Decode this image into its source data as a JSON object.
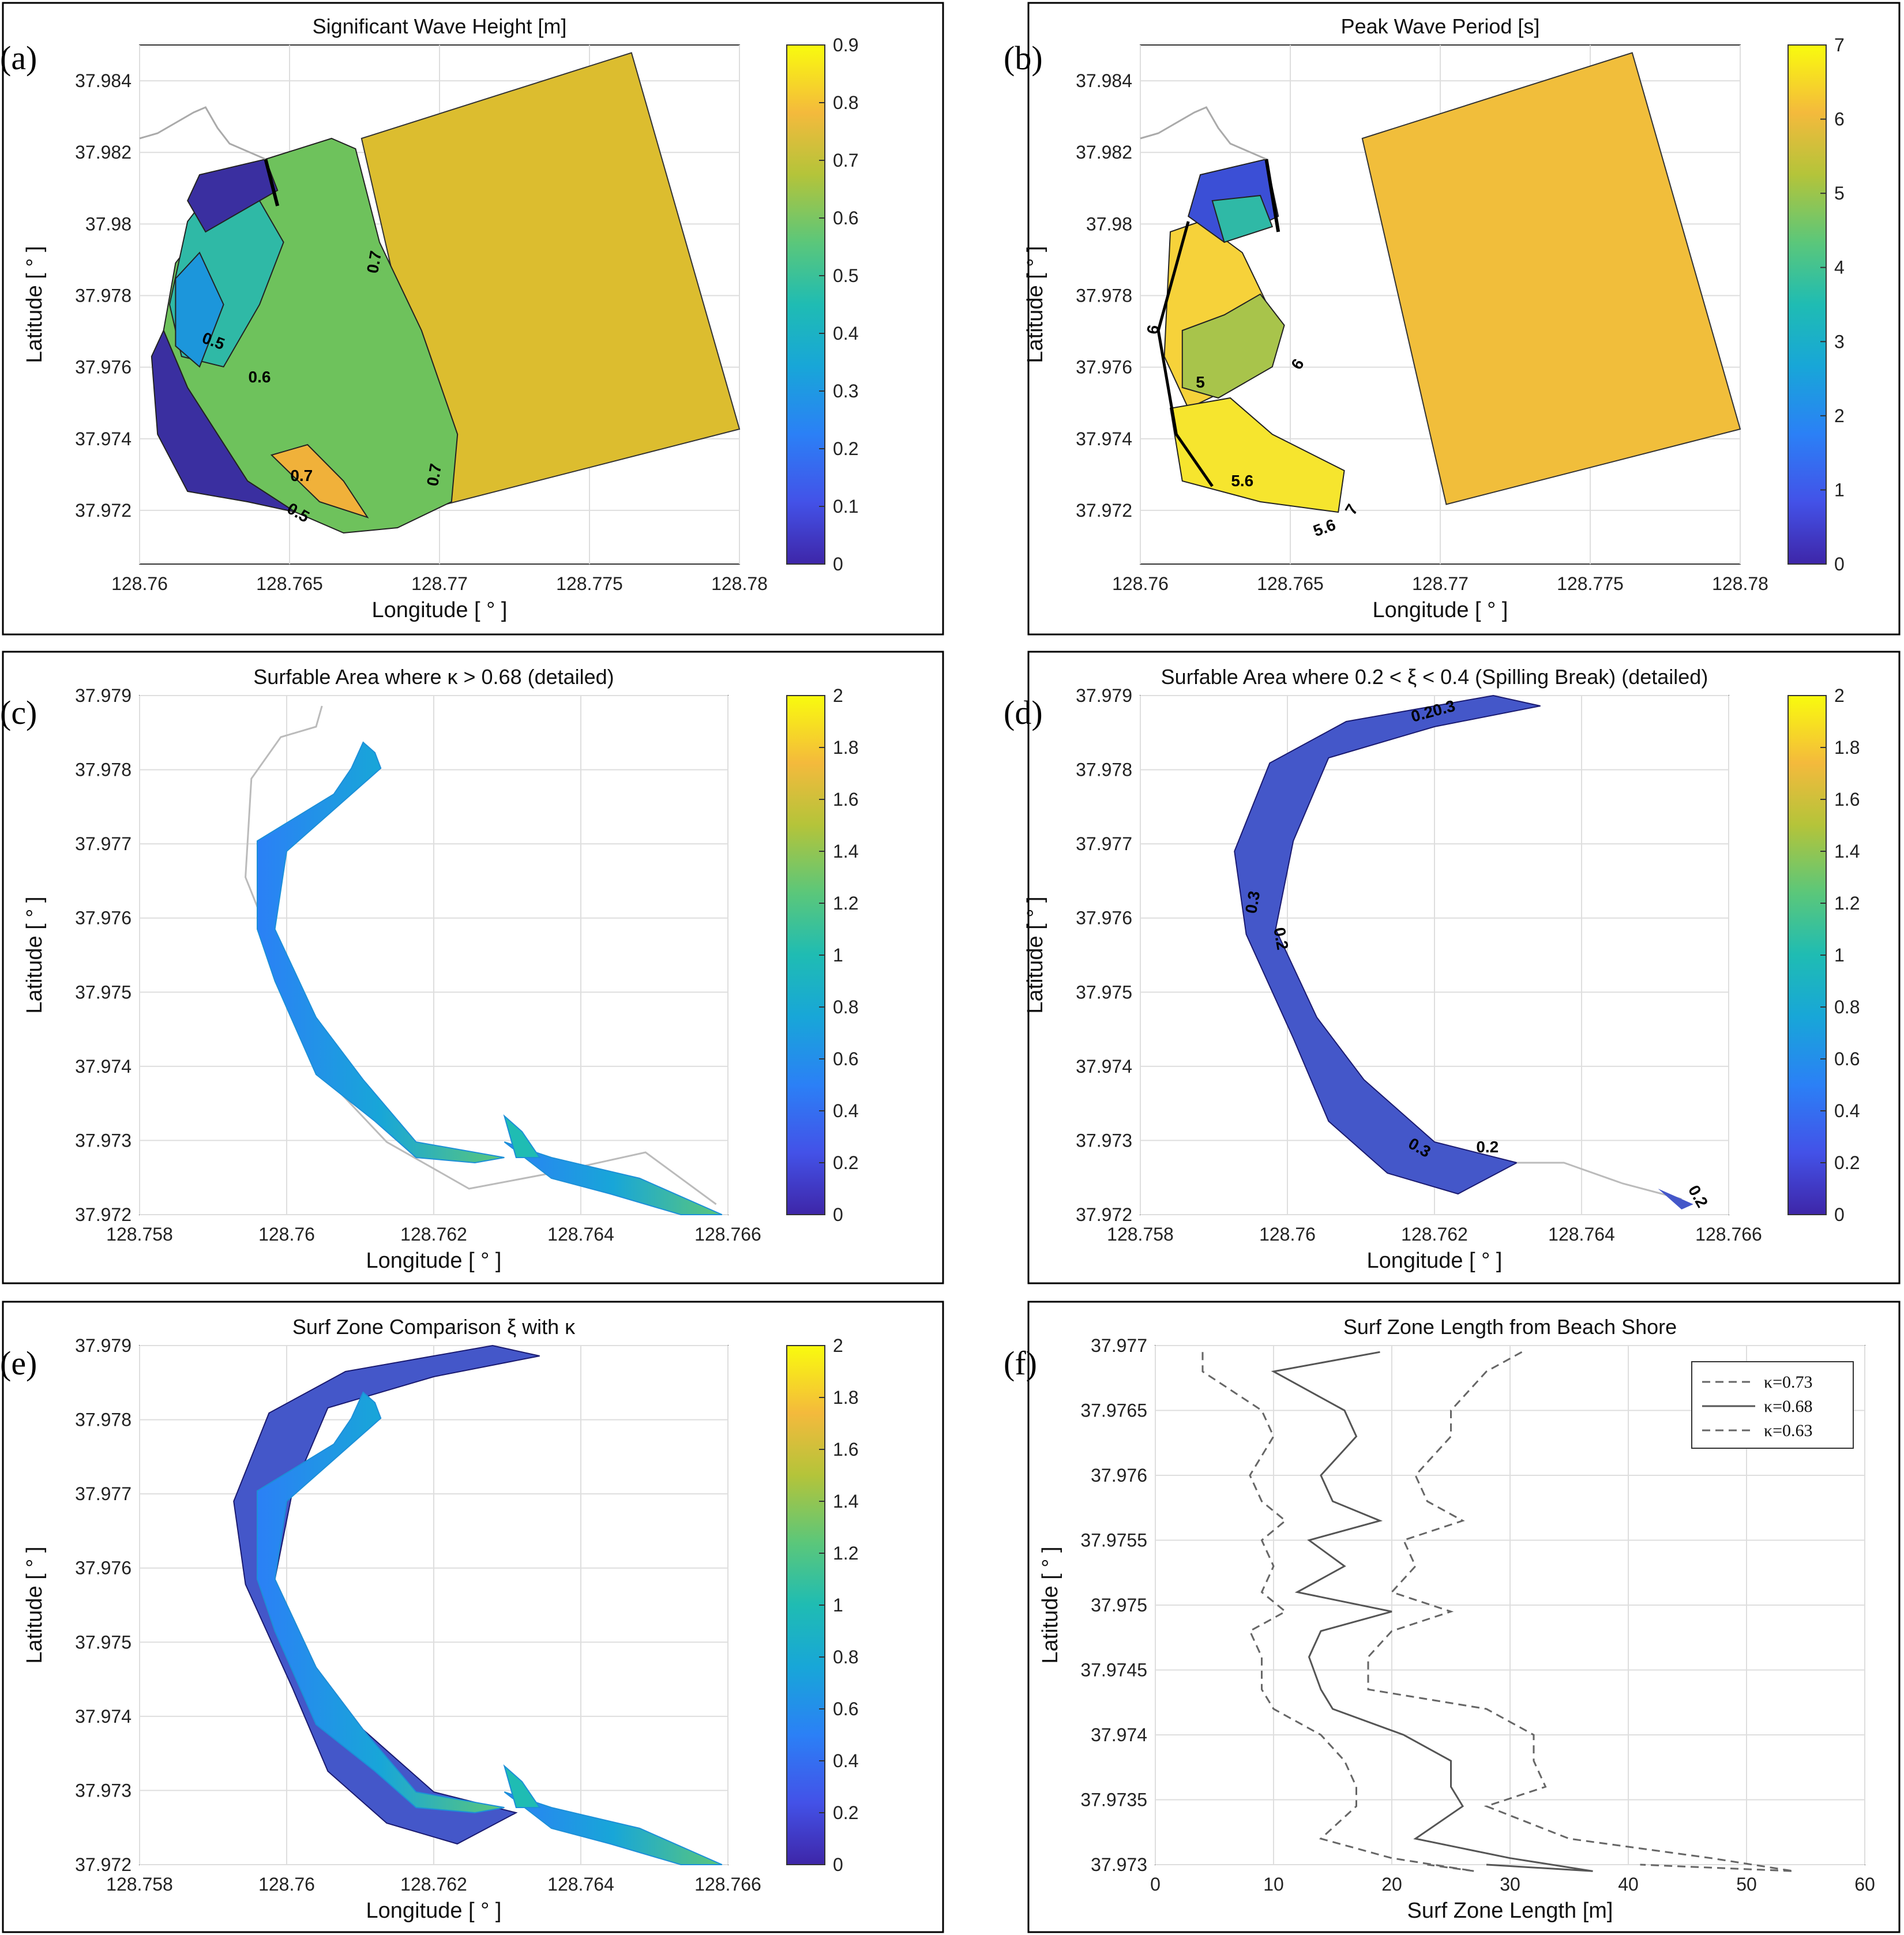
{
  "chart_data": [
    {
      "panel": "(a)",
      "type": "heatmap",
      "title": "Significant Wave Height [m]",
      "xlabel": "Longitude [ ° ]",
      "ylabel": "Latitude [ ° ]",
      "xlim": [
        128.758,
        128.78
      ],
      "ylim": [
        37.9705,
        37.985
      ],
      "xticks": [
        "128.76",
        "128.765",
        "128.77",
        "128.775",
        "128.78"
      ],
      "yticks": [
        "37.972",
        "37.974",
        "37.976",
        "37.978",
        "37.98",
        "37.982",
        "37.984"
      ],
      "colorbar": {
        "min": 0,
        "max": 0.9,
        "ticks": [
          "0",
          "0.1",
          "0.2",
          "0.3",
          "0.4",
          "0.5",
          "0.6",
          "0.7",
          "0.8",
          "0.9"
        ]
      },
      "contour_labels": [
        "0.7",
        "0.5",
        "0.6",
        "0.7",
        "0.7",
        "0.5"
      ]
    },
    {
      "panel": "(b)",
      "type": "heatmap",
      "title": "Peak Wave Period [s]",
      "xlabel": "Longitude [ ° ]",
      "ylabel": "Latitude [ ° ]",
      "xlim": [
        128.758,
        128.78
      ],
      "ylim": [
        37.9705,
        37.985
      ],
      "xticks": [
        "128.76",
        "128.765",
        "128.77",
        "128.775",
        "128.78"
      ],
      "yticks": [
        "37.972",
        "37.974",
        "37.976",
        "37.978",
        "37.98",
        "37.982",
        "37.984"
      ],
      "colorbar": {
        "min": 0,
        "max": 7,
        "ticks": [
          "0",
          "1",
          "2",
          "3",
          "4",
          "5",
          "6",
          "7"
        ]
      },
      "contour_labels": [
        "5",
        "6",
        "6",
        "5.6",
        "5.6",
        "7"
      ]
    },
    {
      "panel": "(c)",
      "type": "heatmap",
      "title": "Surfable Area where κ > 0.68 (detailed)",
      "xlabel": "Longitude [ ° ]",
      "ylabel": "Latitude [ ° ]",
      "xlim": [
        128.758,
        128.766
      ],
      "ylim": [
        37.972,
        37.979
      ],
      "xticks": [
        "128.758",
        "128.76",
        "128.762",
        "128.764",
        "128.766"
      ],
      "yticks": [
        "37.972",
        "37.973",
        "37.974",
        "37.975",
        "37.976",
        "37.977",
        "37.978",
        "37.979"
      ],
      "colorbar": {
        "min": 0,
        "max": 2,
        "ticks": [
          "0",
          "0.2",
          "0.4",
          "0.6",
          "0.8",
          "1",
          "1.2",
          "1.4",
          "1.6",
          "1.8",
          "2"
        ]
      }
    },
    {
      "panel": "(d)",
      "type": "heatmap",
      "title": "Surfable Area where 0.2 < ξ < 0.4 (Spilling Break) (detailed)",
      "xlabel": "Longitude [ ° ]",
      "ylabel": "Latitude [ ° ]",
      "xlim": [
        128.758,
        128.766
      ],
      "ylim": [
        37.972,
        37.979
      ],
      "xticks": [
        "128.758",
        "128.76",
        "128.762",
        "128.764",
        "128.766"
      ],
      "yticks": [
        "37.972",
        "37.973",
        "37.974",
        "37.975",
        "37.976",
        "37.977",
        "37.978",
        "37.979"
      ],
      "colorbar": {
        "min": 0,
        "max": 2,
        "ticks": [
          "0",
          "0.2",
          "0.4",
          "0.6",
          "0.8",
          "1",
          "1.2",
          "1.4",
          "1.6",
          "1.8",
          "2"
        ]
      },
      "contour_labels": [
        "0.20.3",
        "0.3",
        "0.2",
        "0.3",
        "0.2",
        "0.2"
      ]
    },
    {
      "panel": "(e)",
      "type": "heatmap",
      "title": "Surf Zone Comparison ξ with κ",
      "xlabel": "Longitude [ ° ]",
      "ylabel": "Latitude [ ° ]",
      "xlim": [
        128.758,
        128.766
      ],
      "ylim": [
        37.972,
        37.979
      ],
      "xticks": [
        "128.758",
        "128.76",
        "128.762",
        "128.764",
        "128.766"
      ],
      "yticks": [
        "37.972",
        "37.973",
        "37.974",
        "37.975",
        "37.976",
        "37.977",
        "37.978",
        "37.979"
      ],
      "colorbar": {
        "min": 0,
        "max": 2,
        "ticks": [
          "0",
          "0.2",
          "0.4",
          "0.6",
          "0.8",
          "1",
          "1.2",
          "1.4",
          "1.6",
          "1.8",
          "2"
        ]
      }
    },
    {
      "panel": "(f)",
      "type": "line",
      "title": "Surf Zone Length from Beach Shore",
      "xlabel": "Surf Zone Length [m]",
      "ylabel": "Latitude [ ° ]",
      "xlim": [
        0,
        60
      ],
      "ylim": [
        37.973,
        37.977
      ],
      "xticks": [
        "0",
        "10",
        "20",
        "30",
        "40",
        "50",
        "60"
      ],
      "yticks": [
        "37.973",
        "37.9735",
        "37.974",
        "37.9745",
        "37.975",
        "37.9755",
        "37.976",
        "37.9765",
        "37.977"
      ],
      "y": [
        37.97695,
        37.9768,
        37.9765,
        37.9763,
        37.976,
        37.9758,
        37.97565,
        37.9755,
        37.9753,
        37.9751,
        37.97495,
        37.9748,
        37.9746,
        37.97435,
        37.9742,
        37.974,
        37.9738,
        37.9736,
        37.97345,
        37.9732,
        37.97305,
        37.97295,
        37.973
      ],
      "series": [
        {
          "name": "κ=0.73",
          "style": "dashed",
          "values": [
            31,
            28,
            25,
            25,
            22,
            23,
            26,
            21,
            22,
            20,
            25,
            20,
            18,
            18,
            28,
            32,
            32,
            33,
            28,
            35,
            47,
            54,
            41
          ]
        },
        {
          "name": "κ=0.68",
          "style": "solid",
          "values": [
            19,
            10,
            16,
            17,
            14,
            15,
            19,
            13,
            16,
            12,
            20,
            14,
            13,
            14,
            15,
            21,
            25,
            25,
            26,
            22,
            30,
            37,
            28
          ]
        },
        {
          "name": "κ=0.63",
          "style": "dashed",
          "values": [
            4,
            4,
            9,
            10,
            8,
            9,
            11,
            9,
            10,
            9,
            11,
            8,
            9,
            9,
            10,
            14,
            16,
            17,
            17,
            14,
            20,
            27,
            23
          ]
        }
      ],
      "legend_position": "top-right"
    }
  ],
  "panel_labels": [
    "(a)",
    "(b)",
    "(c)",
    "(d)",
    "(e)",
    "(f)"
  ]
}
